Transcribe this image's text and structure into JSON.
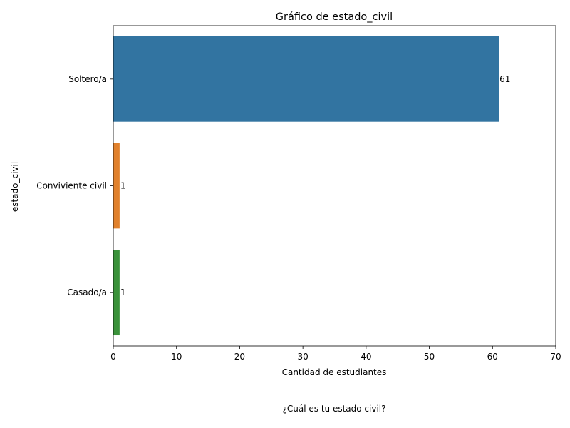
{
  "chart_data": {
    "type": "bar",
    "orientation": "horizontal",
    "title": "Gráfico de estado_civil",
    "xlabel": "Cantidad de estudiantes",
    "ylabel": "estado_civil",
    "categories": [
      "Soltero/a",
      "Conviviente civil",
      "Casado/a"
    ],
    "values": [
      61,
      1,
      1
    ],
    "data_labels": [
      "61",
      "1",
      "1"
    ],
    "colors": [
      "#3274a1",
      "#e1812c",
      "#3a923a"
    ],
    "xlim": [
      0,
      70
    ],
    "xticks": [
      "0",
      "10",
      "20",
      "30",
      "40",
      "50",
      "60",
      "70"
    ],
    "grid": false,
    "legend": "none"
  },
  "caption": "¿Cuál es tu estado civil?"
}
